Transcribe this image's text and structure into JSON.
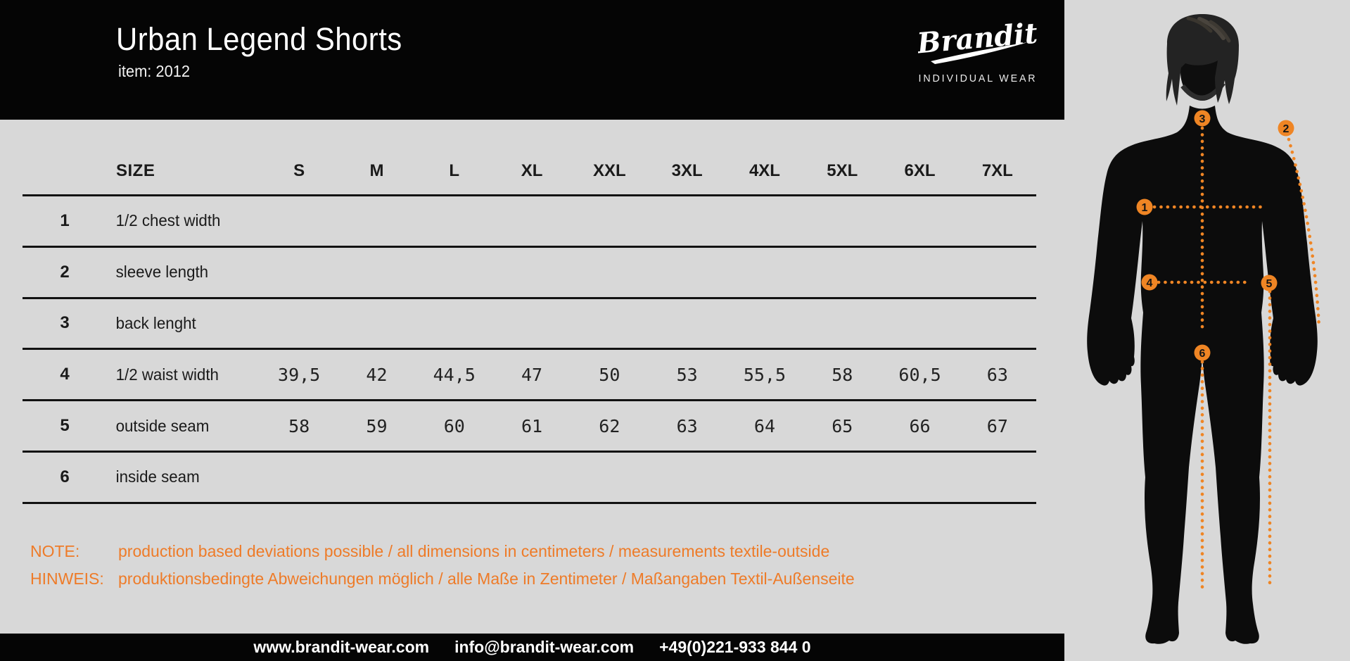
{
  "header": {
    "title": "Urban Legend Shorts",
    "item_line": "item: 2012",
    "brand": {
      "logo_text": "Brandit",
      "tagline": "INDIVIDUAL WEAR"
    }
  },
  "size_chart": {
    "size_header_label": "SIZE",
    "sizes": [
      "S",
      "M",
      "L",
      "XL",
      "XXL",
      "3XL",
      "4XL",
      "5XL",
      "6XL",
      "7XL"
    ],
    "rows": [
      {
        "num": "1",
        "label": "1/2 chest width",
        "values": [
          "",
          "",
          "",
          "",
          "",
          "",
          "",
          "",
          "",
          ""
        ]
      },
      {
        "num": "2",
        "label": "sleeve length",
        "values": [
          "",
          "",
          "",
          "",
          "",
          "",
          "",
          "",
          "",
          ""
        ]
      },
      {
        "num": "3",
        "label": "back lenght",
        "values": [
          "",
          "",
          "",
          "",
          "",
          "",
          "",
          "",
          "",
          ""
        ]
      },
      {
        "num": "4",
        "label": "1/2 waist width",
        "values": [
          "39,5",
          "42",
          "44,5",
          "47",
          "50",
          "53",
          "55,5",
          "58",
          "60,5",
          "63"
        ]
      },
      {
        "num": "5",
        "label": "outside seam",
        "values": [
          "58",
          "59",
          "60",
          "61",
          "62",
          "63",
          "64",
          "65",
          "66",
          "67"
        ]
      },
      {
        "num": "6",
        "label": "inside seam",
        "values": [
          "",
          "",
          "",
          "",
          "",
          "",
          "",
          "",
          "",
          ""
        ]
      }
    ]
  },
  "notes": {
    "note_label": "NOTE:",
    "note_text": "production based deviations possible / all dimensions in centimeters / measurements textile-outside",
    "hinweis_label": "HINWEIS:",
    "hinweis_text": "produktionsbedingte Abweichungen möglich / alle Maße in Zentimeter / Maßangaben Textil-Außenseite"
  },
  "footer": {
    "website": "www.brandit-wear.com",
    "email": "info@brandit-wear.com",
    "phone": "+49(0)221-933 844 0"
  },
  "figure": {
    "markers": [
      "1",
      "2",
      "3",
      "4",
      "5",
      "6"
    ]
  },
  "colors": {
    "accent_orange_text": "#EE7B28",
    "marker_orange": "#EF8524",
    "background_gray": "#D8D8D8",
    "bar_black": "#050505"
  }
}
